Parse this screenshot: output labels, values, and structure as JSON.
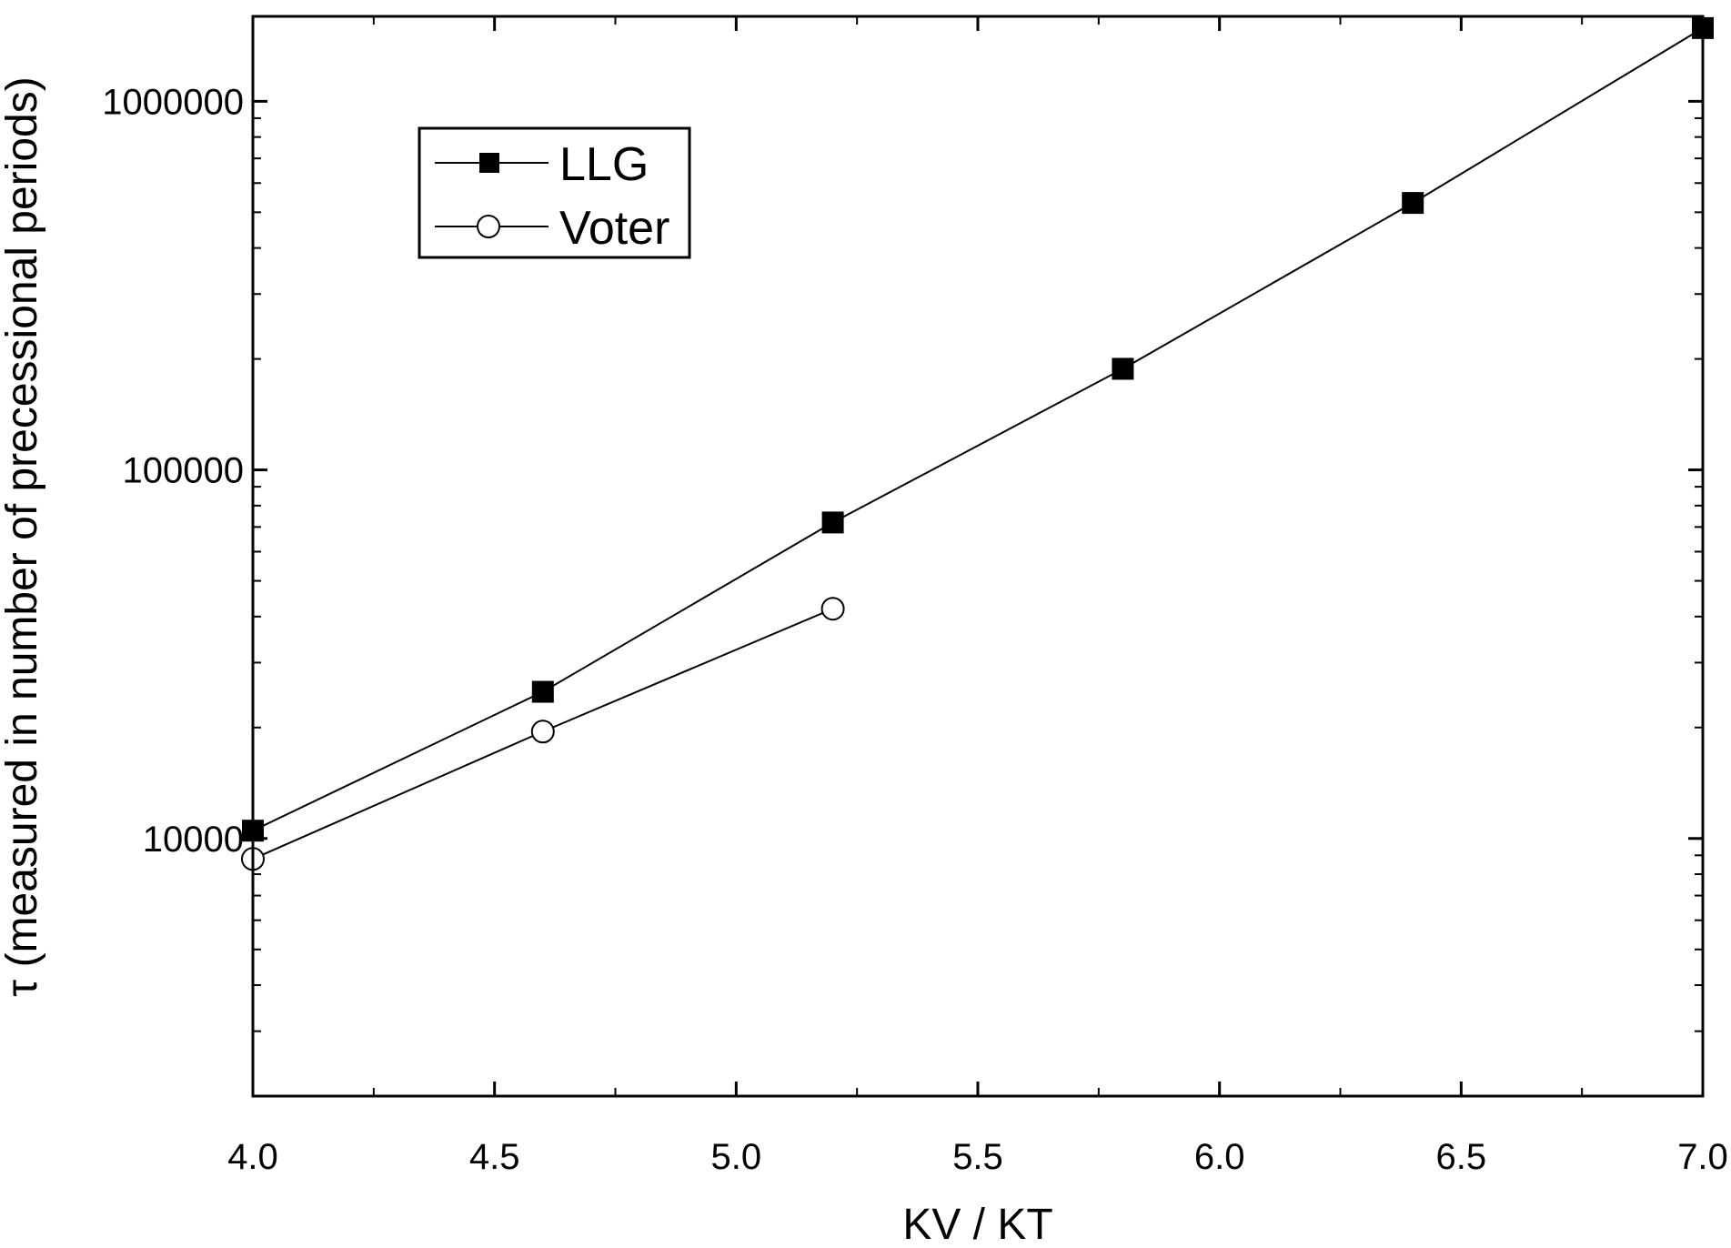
{
  "chart_data": {
    "type": "line",
    "title": "",
    "xlabel": "KV / KT",
    "ylabel": "τ (measured in number of precessional periods)",
    "xlim": [
      4.0,
      7.0
    ],
    "ylim": [
      2000,
      1700000
    ],
    "yscale": "log",
    "xticks": [
      "4.0",
      "4.5",
      "5.0",
      "5.5",
      "6.0",
      "6.5",
      "7.0"
    ],
    "xtick_values": [
      4.0,
      4.5,
      5.0,
      5.5,
      6.0,
      6.5,
      7.0
    ],
    "yticks": [
      "10000",
      "100000",
      "1000000"
    ],
    "ytick_values": [
      10000,
      100000,
      1000000
    ],
    "grid": false,
    "legend_position": "top-left",
    "series": [
      {
        "name": "LLG",
        "marker": "filled-square",
        "x": [
          4.0,
          4.6,
          5.2,
          5.8,
          6.4,
          7.0
        ],
        "values": [
          10500,
          25000,
          72000,
          188000,
          530000,
          1580000
        ]
      },
      {
        "name": "Voter",
        "marker": "open-circle",
        "x": [
          4.0,
          4.6,
          5.2
        ],
        "values": [
          8800,
          19500,
          42000
        ]
      }
    ]
  }
}
